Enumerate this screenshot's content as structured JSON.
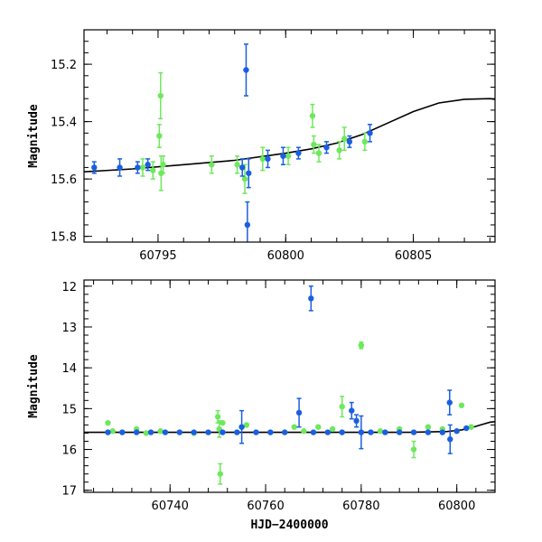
{
  "chart_data": [
    {
      "type": "scatter",
      "ylabel": "Magnitude",
      "xlim": [
        60792.1,
        60808.2
      ],
      "ylim": [
        15.82,
        15.08
      ],
      "y_inverted": true,
      "xticks": [
        60795,
        60800,
        60805
      ],
      "yticks": [
        15.2,
        15.4,
        15.6,
        15.8
      ],
      "series": [
        {
          "color": "#6ee85c",
          "points": [
            {
              "x": 60794.4,
              "y": 15.56,
              "err": 0.03
            },
            {
              "x": 60794.8,
              "y": 15.57,
              "err": 0.03
            },
            {
              "x": 60795.05,
              "y": 15.45,
              "err": 0.04
            },
            {
              "x": 60795.1,
              "y": 15.31,
              "err": 0.08
            },
            {
              "x": 60795.12,
              "y": 15.58,
              "err": 0.06
            },
            {
              "x": 60795.2,
              "y": 15.55,
              "err": 0.03
            },
            {
              "x": 60797.1,
              "y": 15.55,
              "err": 0.03
            },
            {
              "x": 60798.1,
              "y": 15.55,
              "err": 0.03
            },
            {
              "x": 60798.4,
              "y": 15.6,
              "err": 0.05
            },
            {
              "x": 60799.1,
              "y": 15.53,
              "err": 0.04
            },
            {
              "x": 60800.1,
              "y": 15.52,
              "err": 0.03
            },
            {
              "x": 60801.05,
              "y": 15.38,
              "err": 0.04
            },
            {
              "x": 60801.1,
              "y": 15.48,
              "err": 0.03
            },
            {
              "x": 60801.3,
              "y": 15.51,
              "err": 0.03
            },
            {
              "x": 60802.1,
              "y": 15.5,
              "err": 0.03
            },
            {
              "x": 60802.3,
              "y": 15.46,
              "err": 0.04
            },
            {
              "x": 60803.1,
              "y": 15.47,
              "err": 0.03
            }
          ]
        },
        {
          "color": "#1a5fe0",
          "points": [
            {
              "x": 60792.5,
              "y": 15.56,
              "err": 0.02
            },
            {
              "x": 60793.5,
              "y": 15.56,
              "err": 0.03
            },
            {
              "x": 60794.2,
              "y": 15.56,
              "err": 0.02
            },
            {
              "x": 60794.6,
              "y": 15.55,
              "err": 0.02
            },
            {
              "x": 60798.3,
              "y": 15.56,
              "err": 0.03
            },
            {
              "x": 60798.45,
              "y": 15.22,
              "err": 0.09
            },
            {
              "x": 60798.5,
              "y": 15.76,
              "err": 0.08
            },
            {
              "x": 60798.55,
              "y": 15.58,
              "err": 0.05
            },
            {
              "x": 60799.3,
              "y": 15.53,
              "err": 0.03
            },
            {
              "x": 60799.9,
              "y": 15.52,
              "err": 0.03
            },
            {
              "x": 60800.5,
              "y": 15.51,
              "err": 0.02
            },
            {
              "x": 60801.6,
              "y": 15.49,
              "err": 0.02
            },
            {
              "x": 60802.5,
              "y": 15.47,
              "err": 0.02
            },
            {
              "x": 60803.3,
              "y": 15.44,
              "err": 0.03
            }
          ]
        }
      ],
      "model_curve": {
        "x": [
          60792.1,
          60794,
          60796,
          60798,
          60800,
          60801,
          60802,
          60803,
          60804,
          60805,
          60806,
          60807,
          60808,
          60808.2
        ],
        "y": [
          15.575,
          15.565,
          15.55,
          15.535,
          15.51,
          15.495,
          15.475,
          15.445,
          15.405,
          15.365,
          15.335,
          15.322,
          15.32,
          15.322
        ]
      }
    },
    {
      "type": "scatter",
      "xlabel": "HJD−2400000",
      "ylabel": "Magnitude",
      "xlim": [
        60722,
        60808
      ],
      "ylim": [
        17.05,
        11.85
      ],
      "y_inverted": true,
      "xticks": [
        60740,
        60760,
        60780,
        60800
      ],
      "yticks": [
        12,
        13,
        14,
        15,
        16,
        17
      ],
      "series": [
        {
          "color": "#6ee85c",
          "points": [
            {
              "x": 60727,
              "y": 15.35
            },
            {
              "x": 60728,
              "y": 15.55
            },
            {
              "x": 60733,
              "y": 15.5
            },
            {
              "x": 60735,
              "y": 15.6
            },
            {
              "x": 60738,
              "y": 15.55
            },
            {
              "x": 60745,
              "y": 15.6
            },
            {
              "x": 60750,
              "y": 15.2,
              "err": 0.15
            },
            {
              "x": 60750.3,
              "y": 15.5,
              "err": 0.2
            },
            {
              "x": 60750.5,
              "y": 16.6,
              "err": 0.25
            },
            {
              "x": 60751,
              "y": 15.35
            },
            {
              "x": 60756,
              "y": 15.4
            },
            {
              "x": 60766,
              "y": 15.45
            },
            {
              "x": 60768,
              "y": 15.55
            },
            {
              "x": 60771,
              "y": 15.45
            },
            {
              "x": 60774,
              "y": 15.5
            },
            {
              "x": 60776,
              "y": 14.95,
              "err": 0.25
            },
            {
              "x": 60780,
              "y": 13.45,
              "err": 0.08
            },
            {
              "x": 60784,
              "y": 15.55
            },
            {
              "x": 60788,
              "y": 15.5
            },
            {
              "x": 60791,
              "y": 16.0,
              "err": 0.2
            },
            {
              "x": 60794,
              "y": 15.45
            },
            {
              "x": 60797,
              "y": 15.5
            },
            {
              "x": 60801,
              "y": 14.92
            },
            {
              "x": 60803,
              "y": 15.45
            }
          ]
        },
        {
          "color": "#1a5fe0",
          "points": [
            {
              "x": 60727,
              "y": 15.58
            },
            {
              "x": 60730,
              "y": 15.58
            },
            {
              "x": 60733,
              "y": 15.58
            },
            {
              "x": 60736,
              "y": 15.58
            },
            {
              "x": 60739,
              "y": 15.58
            },
            {
              "x": 60742,
              "y": 15.58
            },
            {
              "x": 60745,
              "y": 15.58
            },
            {
              "x": 60748,
              "y": 15.58
            },
            {
              "x": 60751,
              "y": 15.58
            },
            {
              "x": 60754,
              "y": 15.58
            },
            {
              "x": 60755,
              "y": 15.45,
              "err": 0.4
            },
            {
              "x": 60758,
              "y": 15.58
            },
            {
              "x": 60761,
              "y": 15.58
            },
            {
              "x": 60764,
              "y": 15.58
            },
            {
              "x": 60767,
              "y": 15.1,
              "err": 0.35
            },
            {
              "x": 60769.5,
              "y": 12.3,
              "err": 0.3
            },
            {
              "x": 60770,
              "y": 15.58
            },
            {
              "x": 60773,
              "y": 15.58
            },
            {
              "x": 60776,
              "y": 15.58
            },
            {
              "x": 60778,
              "y": 15.05,
              "err": 0.2
            },
            {
              "x": 60779,
              "y": 15.3,
              "err": 0.15
            },
            {
              "x": 60780,
              "y": 15.58,
              "err": 0.4
            },
            {
              "x": 60782,
              "y": 15.58
            },
            {
              "x": 60785,
              "y": 15.58
            },
            {
              "x": 60788,
              "y": 15.58
            },
            {
              "x": 60791,
              "y": 15.58
            },
            {
              "x": 60794,
              "y": 15.58
            },
            {
              "x": 60797,
              "y": 15.58
            },
            {
              "x": 60798.5,
              "y": 14.85,
              "err": 0.3
            },
            {
              "x": 60798.6,
              "y": 15.75,
              "err": 0.35
            },
            {
              "x": 60800,
              "y": 15.55
            },
            {
              "x": 60802,
              "y": 15.48
            }
          ]
        }
      ],
      "model_curve": {
        "x": [
          60722,
          60760,
          60790,
          60798,
          60801,
          60803,
          60805,
          60807,
          60808
        ],
        "y": [
          15.58,
          15.58,
          15.58,
          15.56,
          15.52,
          15.47,
          15.4,
          15.33,
          15.32
        ]
      }
    }
  ]
}
